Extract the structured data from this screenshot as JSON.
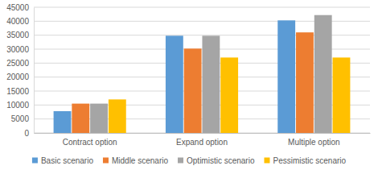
{
  "chart_data": {
    "type": "bar",
    "categories": [
      "Contract option",
      "Expand option",
      "Multiple option"
    ],
    "series": [
      {
        "name": "Basic scenario",
        "color": "#5b9bd5",
        "values": [
          7800,
          34800,
          40300
        ]
      },
      {
        "name": "Middle scenario",
        "color": "#ed7d31",
        "values": [
          10500,
          30200,
          36000
        ]
      },
      {
        "name": "Optimistic scenario",
        "color": "#a5a5a5",
        "values": [
          10500,
          34800,
          42200
        ]
      },
      {
        "name": "Pessimistic scenario",
        "color": "#ffc000",
        "values": [
          12000,
          27000,
          27000
        ]
      }
    ],
    "ylim": [
      0,
      45000
    ],
    "yticks": [
      0,
      5000,
      10000,
      15000,
      20000,
      25000,
      30000,
      35000,
      40000,
      45000
    ],
    "grid": true,
    "legend": "bottom"
  }
}
